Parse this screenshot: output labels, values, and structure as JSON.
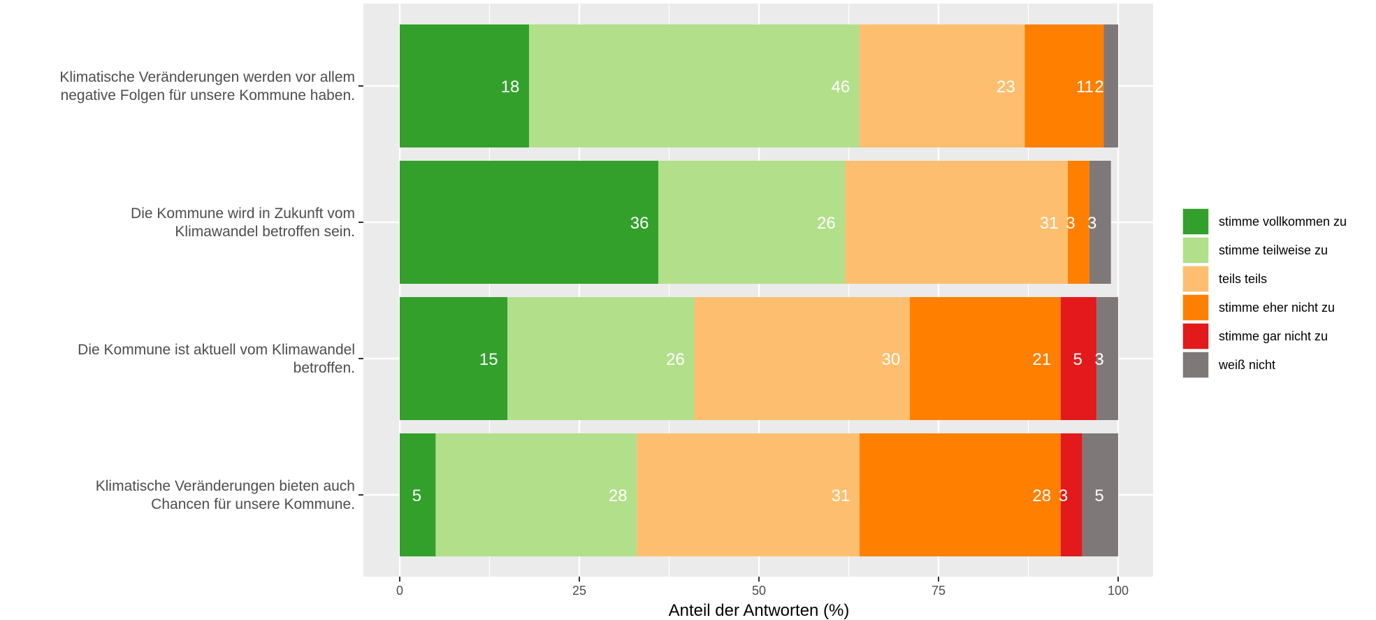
{
  "chart_data": {
    "type": "bar",
    "orientation": "horizontal",
    "stacked": true,
    "categories": [
      [
        "Klimatische Veränderungen werden vor allem",
        "negative Folgen für unsere Kommune haben."
      ],
      [
        "Die Kommune wird in Zukunft vom",
        "Klimawandel betroffen sein."
      ],
      [
        "Die Kommune ist aktuell vom Klimawandel",
        "betroffen."
      ],
      [
        "Klimatische Veränderungen bieten auch",
        "Chancen für unsere Kommune."
      ]
    ],
    "series": [
      {
        "name": "stimme vollkommen zu",
        "color": "#33a02c",
        "values": [
          18,
          36,
          15,
          5
        ]
      },
      {
        "name": "stimme teilweise zu",
        "color": "#b2df8a",
        "values": [
          46,
          26,
          26,
          28
        ]
      },
      {
        "name": "teils teils",
        "color": "#fdbf6f",
        "values": [
          23,
          31,
          30,
          31
        ]
      },
      {
        "name": "stimme eher nicht zu",
        "color": "#ff7f00",
        "values": [
          11,
          3,
          21,
          28
        ]
      },
      {
        "name": "stimme gar nicht zu",
        "color": "#e31a1c",
        "values": [
          0,
          0,
          5,
          3
        ]
      },
      {
        "name": "weiß nicht",
        "color": "#7f7878",
        "values": [
          2,
          3,
          3,
          5
        ]
      }
    ],
    "title": "",
    "xlabel": "Anteil der Antworten (%)",
    "ylabel": "",
    "xlim": [
      0,
      100
    ],
    "xticks": [
      0,
      25,
      50,
      75,
      100
    ],
    "grid": true,
    "legend_position": "right"
  }
}
